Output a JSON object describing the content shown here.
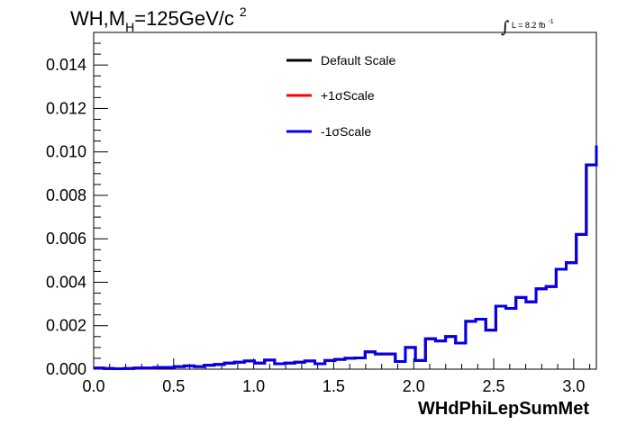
{
  "title": {
    "prefix": "WH,M",
    "subscript": "H",
    "suffix": "=125GeV/c",
    "superscript": "2"
  },
  "luminosity": {
    "label": "L = 8.2 fb",
    "superscript": "-1"
  },
  "chart_data": {
    "type": "line",
    "xlabel": "WHdPhiLepSumMet",
    "ylabel": "",
    "xlim": [
      0.0,
      3.1416
    ],
    "ylim": [
      0.0,
      0.0155
    ],
    "x_ticks": [
      "0.0",
      "0.5",
      "1.0",
      "1.5",
      "2.0",
      "2.5",
      "3.0"
    ],
    "y_ticks": [
      "0.000",
      "0.002",
      "0.004",
      "0.006",
      "0.008",
      "0.010",
      "0.012",
      "0.014"
    ],
    "bin_edges": [
      0.0,
      0.0628,
      0.1257,
      0.1885,
      0.2513,
      0.3142,
      0.377,
      0.4398,
      0.5027,
      0.5655,
      0.6283,
      0.6912,
      0.754,
      0.8168,
      0.8796,
      0.9425,
      1.0053,
      1.0681,
      1.131,
      1.1938,
      1.2566,
      1.3195,
      1.3823,
      1.4451,
      1.508,
      1.5708,
      1.6336,
      1.6965,
      1.7593,
      1.8221,
      1.885,
      1.9478,
      2.0106,
      2.0735,
      2.1363,
      2.1991,
      2.2619,
      2.3248,
      2.3876,
      2.4504,
      2.5133,
      2.5761,
      2.6389,
      2.7018,
      2.7646,
      2.8274,
      2.8903,
      2.9531,
      3.0159,
      3.0788,
      3.1416
    ],
    "legend_position": "top-center",
    "series": [
      {
        "name": "Default Scale",
        "color": "#000000",
        "values": [
          5e-05,
          3e-05,
          2e-05,
          3e-05,
          5e-05,
          5e-05,
          8e-05,
          8e-05,
          0.00012,
          0.00015,
          0.00012,
          0.00018,
          0.00022,
          0.00028,
          0.00032,
          0.00038,
          0.00028,
          0.00042,
          0.00025,
          0.00028,
          0.00032,
          0.00038,
          0.00025,
          0.0004,
          0.00045,
          0.0005,
          0.00052,
          0.0008,
          0.0007,
          0.0007,
          0.00035,
          0.001,
          0.0004,
          0.0014,
          0.0013,
          0.0015,
          0.0012,
          0.0022,
          0.0023,
          0.0018,
          0.0029,
          0.0028,
          0.0033,
          0.0031,
          0.0037,
          0.0038,
          0.0046,
          0.0049,
          0.0062,
          0.0094,
          0.0103
        ]
      },
      {
        "name": "+1σScale",
        "color": "#ff0000",
        "values": [
          5e-05,
          3e-05,
          2e-05,
          3e-05,
          5e-05,
          5e-05,
          8e-05,
          8e-05,
          0.00012,
          0.00015,
          0.00012,
          0.00018,
          0.00022,
          0.00028,
          0.00032,
          0.00038,
          0.00028,
          0.00042,
          0.00025,
          0.00028,
          0.00032,
          0.00038,
          0.00025,
          0.0004,
          0.00045,
          0.0005,
          0.00052,
          0.0008,
          0.0007,
          0.0007,
          0.00035,
          0.001,
          0.0004,
          0.0014,
          0.0013,
          0.0015,
          0.0012,
          0.0022,
          0.0023,
          0.0018,
          0.0029,
          0.0028,
          0.0033,
          0.0031,
          0.0037,
          0.0038,
          0.0046,
          0.0049,
          0.0062,
          0.0094,
          0.0103
        ]
      },
      {
        "name": "-1σScale",
        "color": "#0000ee",
        "values": [
          5e-05,
          3e-05,
          2e-05,
          3e-05,
          5e-05,
          5e-05,
          8e-05,
          8e-05,
          0.00012,
          0.00015,
          0.00012,
          0.00018,
          0.00022,
          0.00028,
          0.00032,
          0.00038,
          0.00028,
          0.00042,
          0.00025,
          0.00028,
          0.00032,
          0.00038,
          0.00025,
          0.0004,
          0.00045,
          0.0005,
          0.00052,
          0.0008,
          0.0007,
          0.0007,
          0.00035,
          0.001,
          0.0004,
          0.0014,
          0.0013,
          0.0015,
          0.0012,
          0.0022,
          0.0023,
          0.0018,
          0.0029,
          0.0028,
          0.0033,
          0.0031,
          0.0037,
          0.0038,
          0.0046,
          0.0049,
          0.0062,
          0.0094,
          0.0103
        ]
      }
    ]
  }
}
